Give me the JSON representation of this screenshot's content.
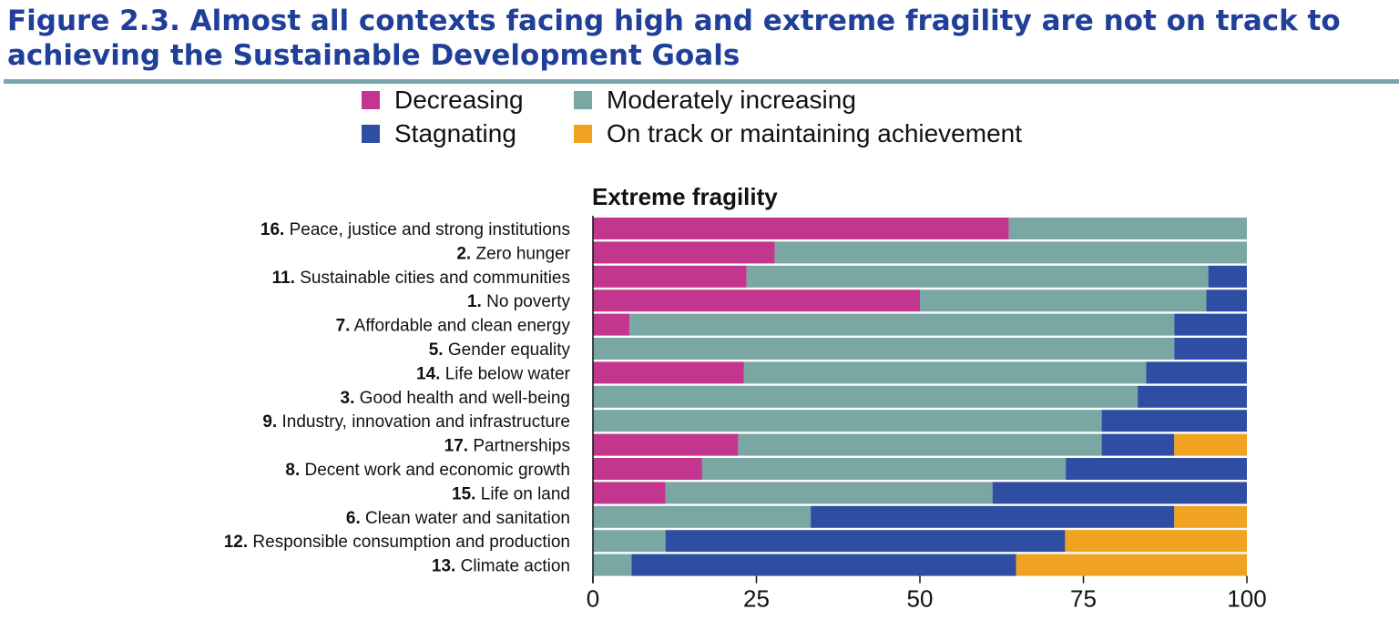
{
  "figure": {
    "title": "Figure 2.3. Almost all contexts facing high and extreme fragility are not on track to achieving the Sustainable Development Goals"
  },
  "legend": [
    {
      "label": "Decreasing",
      "color": "#c2368f"
    },
    {
      "label": "Moderately increasing",
      "color": "#7aa6a3"
    },
    {
      "label": "Stagnating",
      "color": "#2f4ea3"
    },
    {
      "label": "On track or maintaining achievement",
      "color": "#efa321"
    }
  ],
  "chart_data": {
    "type": "bar",
    "orientation": "horizontal",
    "stacked": true,
    "title": "Extreme fragility",
    "xlim": [
      0,
      100
    ],
    "xticks": [
      0,
      25,
      50,
      75,
      100
    ],
    "categories": [
      {
        "num": "16.",
        "name": "Peace, justice and strong institutions"
      },
      {
        "num": "2.",
        "name": "Zero hunger"
      },
      {
        "num": "11.",
        "name": "Sustainable cities and communities"
      },
      {
        "num": "1.",
        "name": "No poverty"
      },
      {
        "num": "7.",
        "name": "Affordable and clean energy"
      },
      {
        "num": "5.",
        "name": "Gender equality"
      },
      {
        "num": "14.",
        "name": "Life below water"
      },
      {
        "num": "3.",
        "name": "Good health and well-being"
      },
      {
        "num": "9.",
        "name": "Industry, innovation and infrastructure"
      },
      {
        "num": "17.",
        "name": "Partnerships"
      },
      {
        "num": "8.",
        "name": "Decent work and economic growth"
      },
      {
        "num": "15.",
        "name": "Life on land"
      },
      {
        "num": "6.",
        "name": "Clean water and sanitation"
      },
      {
        "num": "12.",
        "name": "Responsible consumption and production"
      },
      {
        "num": "13.",
        "name": "Climate action"
      }
    ],
    "series": [
      {
        "name": "Decreasing",
        "color": "#c2368f",
        "values": [
          63.6,
          27.8,
          23.5,
          50.0,
          5.6,
          0,
          23.1,
          0,
          0,
          22.2,
          16.7,
          11.1,
          0,
          0,
          0
        ]
      },
      {
        "name": "Moderately increasing",
        "color": "#7aa6a3",
        "values": [
          36.4,
          72.2,
          70.6,
          43.8,
          83.3,
          88.9,
          61.5,
          83.3,
          77.8,
          55.6,
          55.6,
          50.0,
          33.3,
          11.1,
          5.9
        ]
      },
      {
        "name": "Stagnating",
        "color": "#2f4ea3",
        "values": [
          0,
          0,
          5.9,
          6.2,
          11.1,
          11.1,
          15.4,
          16.7,
          22.2,
          11.1,
          27.7,
          38.9,
          55.6,
          61.1,
          58.8
        ]
      },
      {
        "name": "On track or maintaining achievement",
        "color": "#efa321",
        "values": [
          0,
          0,
          0,
          0,
          0,
          0,
          0,
          0,
          0,
          11.1,
          0,
          0,
          11.1,
          27.8,
          35.3
        ]
      }
    ]
  }
}
